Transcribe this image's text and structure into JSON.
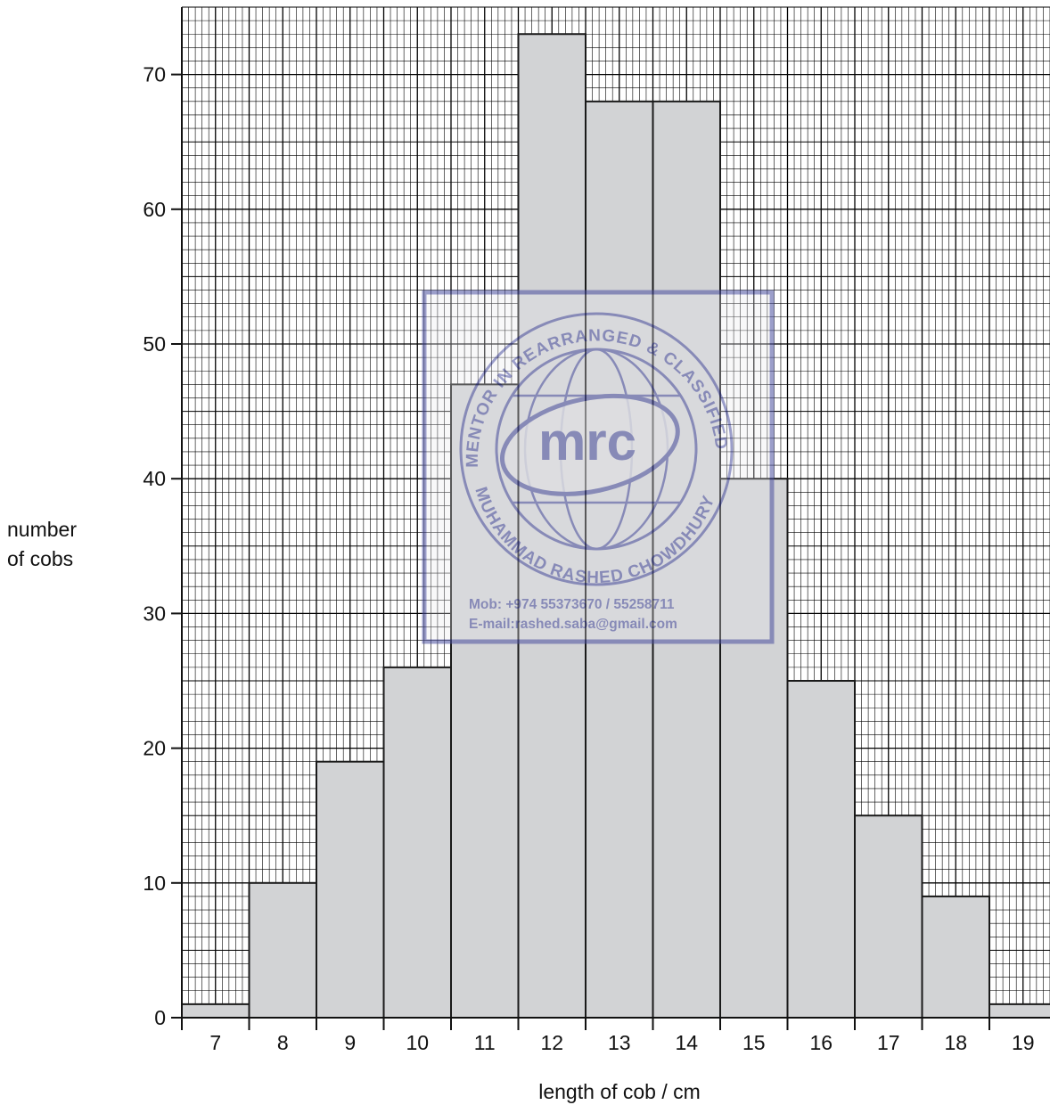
{
  "chart_data": {
    "type": "bar",
    "subtype": "histogram",
    "ylabel_lines": [
      "number",
      "of cobs"
    ],
    "xlabel": "length of cob / cm",
    "categories": [
      "7",
      "8",
      "9",
      "10",
      "11",
      "12",
      "13",
      "14",
      "15",
      "16",
      "17",
      "18",
      "19"
    ],
    "values": [
      1,
      10,
      19,
      26,
      47,
      73,
      68,
      68,
      40,
      25,
      15,
      9,
      1
    ],
    "ylim": [
      0,
      75
    ],
    "yticks": [
      0,
      10,
      20,
      30,
      40,
      50,
      60,
      70
    ],
    "grid": true,
    "bar_color": "#d2d3d5",
    "grid_color": "#000000"
  },
  "watermark": {
    "logo_text": "mrc",
    "ring_top": "MENTOR IN REARRANGED & CLASSIFIED",
    "ring_bottom": "MUHAMMAD RASHED CHOWDHURY",
    "mobile": "Mob:  +974 55373670 / 55258711",
    "email": "E-mail:rashed.saba@gmail.com",
    "color": "#4b4fa0"
  }
}
